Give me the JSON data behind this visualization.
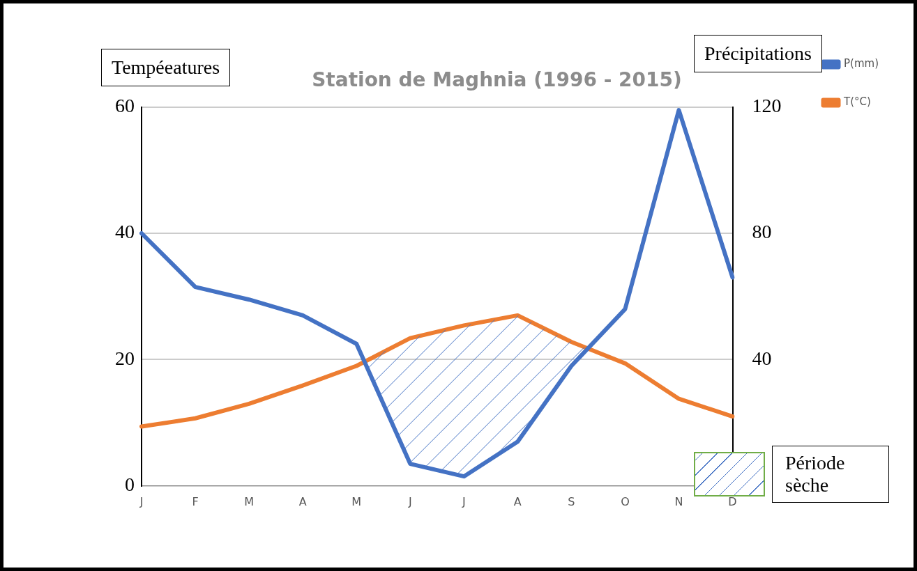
{
  "chart_data": {
    "type": "line",
    "title": "Station de Maghnia (1996 - 2015)",
    "ylabel": "Tempéeatures",
    "y2label": "Précipitations",
    "categories": [
      "J",
      "F",
      "M",
      "A",
      "M",
      "J",
      "J",
      "A",
      "S",
      "O",
      "N",
      "D"
    ],
    "series": [
      {
        "name": "P(mm)",
        "color": "#4472c4",
        "axis": "y2",
        "values": [
          80,
          63,
          59,
          54,
          45,
          7,
          3,
          14,
          38,
          56,
          119,
          66
        ]
      },
      {
        "name": "T(°C)",
        "color": "#ed7d31",
        "values": [
          9.4,
          10.7,
          13,
          15.9,
          19,
          23.4,
          25.4,
          27,
          22.8,
          19.4,
          13.8,
          11
        ]
      }
    ],
    "ylim": [
      0,
      60
    ],
    "yticks": [
      0,
      20,
      40,
      60
    ],
    "y2lim": [
      0,
      120
    ],
    "y2ticks": [
      40,
      80,
      120
    ],
    "grid": "y",
    "legend": "top right",
    "marker": "none",
    "line_style": "solid",
    "annotations": [
      "Période sèche"
    ]
  }
}
